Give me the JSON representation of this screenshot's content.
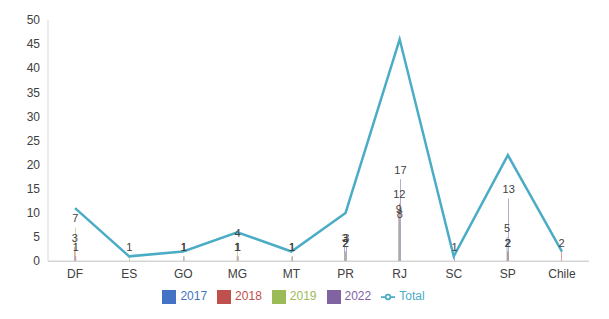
{
  "chart_data": {
    "type": "bar",
    "categories": [
      "DF",
      "ES",
      "GO",
      "MG",
      "MT",
      "PR",
      "RJ",
      "SC",
      "SP",
      "Chile"
    ],
    "series": [
      {
        "name": "2017",
        "color": "#4472c4",
        "data_labels": true,
        "values": [
          null,
          null,
          null,
          null,
          null,
          3,
          9,
          null,
          5,
          null
        ]
      },
      {
        "name": "2018",
        "color": "#c0504d",
        "data_labels": true,
        "values": [
          3,
          null,
          null,
          1,
          null,
          2,
          12,
          null,
          2,
          2
        ]
      },
      {
        "name": "2019",
        "color": "#9bbb59",
        "data_labels": true,
        "values": [
          7,
          1,
          1,
          4,
          1,
          2,
          8,
          null,
          2,
          null
        ]
      },
      {
        "name": "2022",
        "color": "#8064a2",
        "data_labels": true,
        "values": [
          1,
          null,
          1,
          1,
          1,
          3,
          17,
          1,
          13,
          null
        ]
      },
      {
        "name": "Total",
        "color": "#4bacc6",
        "type": "line",
        "data_labels": false,
        "values": [
          11,
          1,
          2,
          6,
          2,
          10,
          46,
          1,
          22,
          2
        ]
      }
    ],
    "ylim": [
      0,
      50
    ],
    "yticks": [
      0,
      5,
      10,
      15,
      20,
      25,
      30,
      35,
      40,
      45,
      50
    ],
    "grid": false,
    "legend": "bottom"
  }
}
